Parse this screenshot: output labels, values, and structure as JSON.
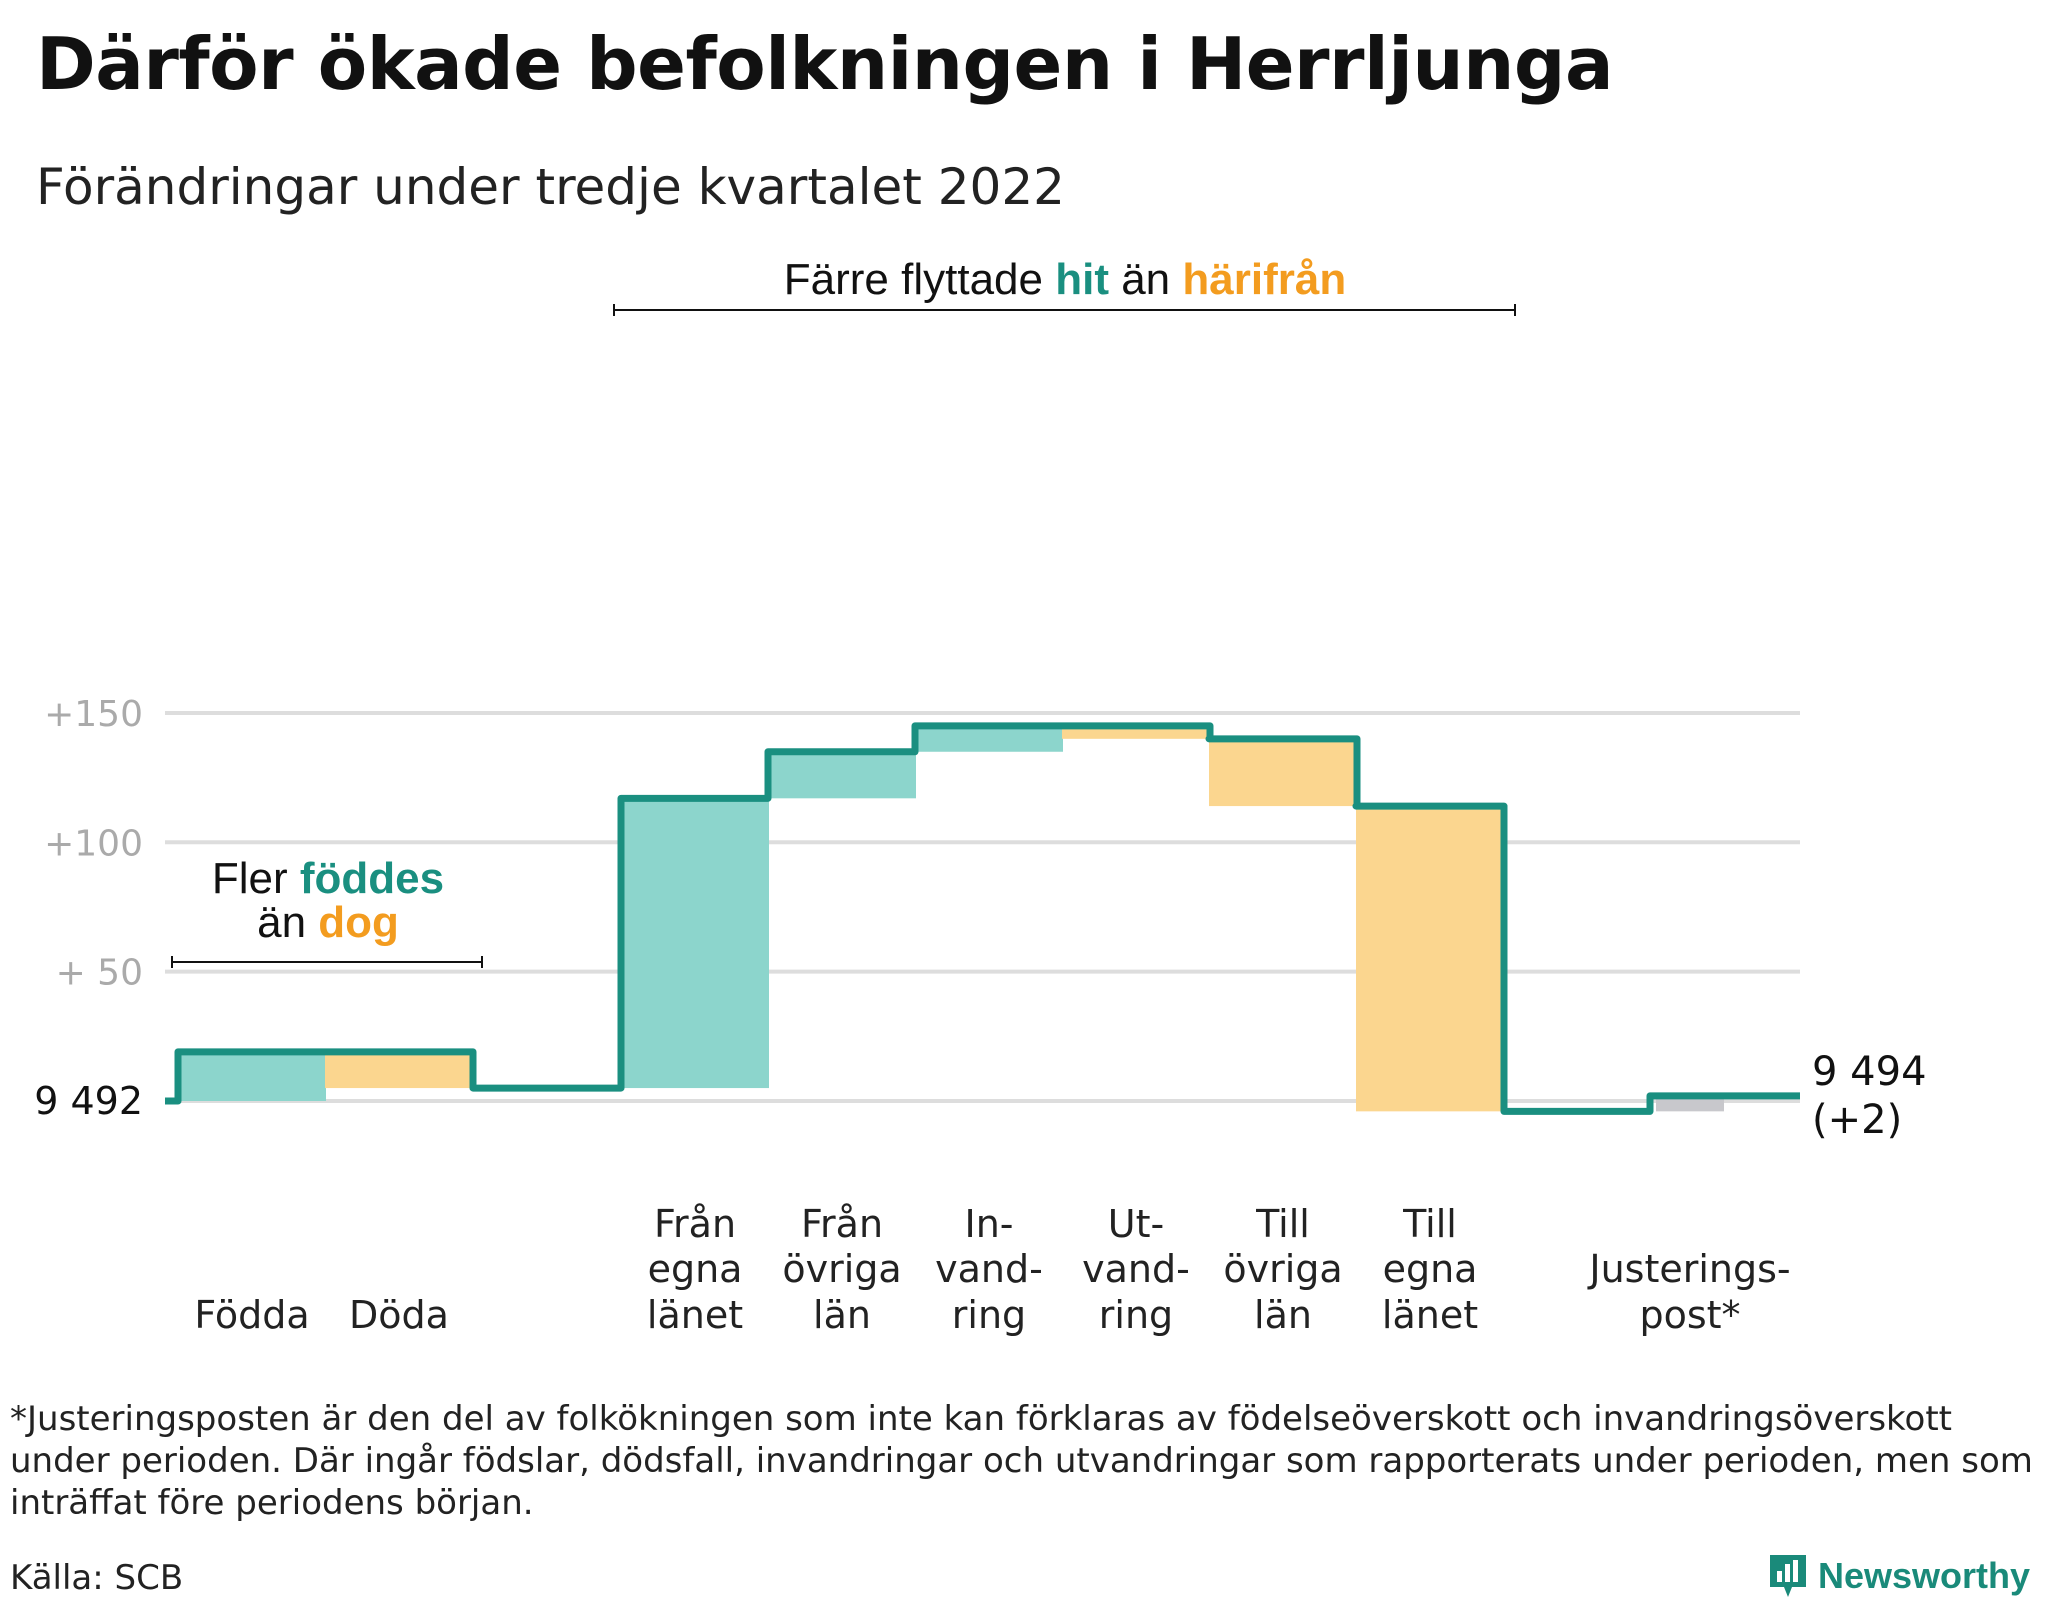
{
  "title": "Därför ökade befolkningen i Herrljunga",
  "subtitle": "Förändringar under tredje kvartalet 2022",
  "footnote": "*Justeringsposten är den del av folkökningen som inte kan förklaras av födelseöverskott och invandringsöverskott under perioden. Där ingår födslar, dödsfall, invandringar och utvandringar som rapporterats under perioden, men som inträffat före periodens början.",
  "source": "Källa: SCB",
  "brand": {
    "name": "Newsworthy",
    "icon": "newsworthy-logo-icon"
  },
  "colors": {
    "increase": "#8cd5cc",
    "decrease": "#fbd68f",
    "adjustment": "#c8c8cc",
    "line": "#1a8f80",
    "accent_orange": "#f39c1f",
    "grid": "#dddddd"
  },
  "chart_data": {
    "type": "waterfall",
    "start_value": 9492,
    "start_label": "9 492",
    "end_value": 9494,
    "end_label": "9 494",
    "end_change_label": "(+2)",
    "ylim": [
      -5,
      155
    ],
    "yticks": [
      {
        "value": 150,
        "label": "+150"
      },
      {
        "value": 100,
        "label": "+100"
      },
      {
        "value": 50,
        "label": "+ 50"
      }
    ],
    "grid": true,
    "steps": [
      {
        "label": [
          "Födda"
        ],
        "change": 19,
        "kind": "increase"
      },
      {
        "label": [
          "Döda"
        ],
        "change": -14,
        "kind": "decrease"
      },
      {
        "label": [
          "Från",
          "egna",
          "länet"
        ],
        "change": 112,
        "kind": "increase"
      },
      {
        "label": [
          "Från",
          "övriga",
          "län"
        ],
        "change": 18,
        "kind": "increase"
      },
      {
        "label": [
          "In-",
          "vand-",
          "ring"
        ],
        "change": 10,
        "kind": "increase"
      },
      {
        "label": [
          "Ut-",
          "vand-",
          "ring"
        ],
        "change": -5,
        "kind": "decrease"
      },
      {
        "label": [
          "Till",
          "övriga",
          "län"
        ],
        "change": -26,
        "kind": "decrease"
      },
      {
        "label": [
          "Till",
          "egna",
          "länet"
        ],
        "change": -118,
        "kind": "decrease"
      },
      {
        "label": [
          "Justerings-",
          "post*"
        ],
        "change": 6,
        "kind": "adjustment"
      }
    ],
    "annotations": [
      {
        "id": "births",
        "line1": [
          {
            "text": "Fler ",
            "style": "plain"
          },
          {
            "text": "föddes",
            "style": "increase"
          }
        ],
        "line2": [
          {
            "text": "än ",
            "style": "plain"
          },
          {
            "text": "dog",
            "style": "decrease"
          }
        ]
      },
      {
        "id": "moves",
        "line1": [
          {
            "text": "Färre flyttade ",
            "style": "plain"
          },
          {
            "text": "hit",
            "style": "increase"
          },
          {
            "text": " än ",
            "style": "plain"
          },
          {
            "text": "härifrån",
            "style": "decrease"
          }
        ]
      }
    ]
  }
}
